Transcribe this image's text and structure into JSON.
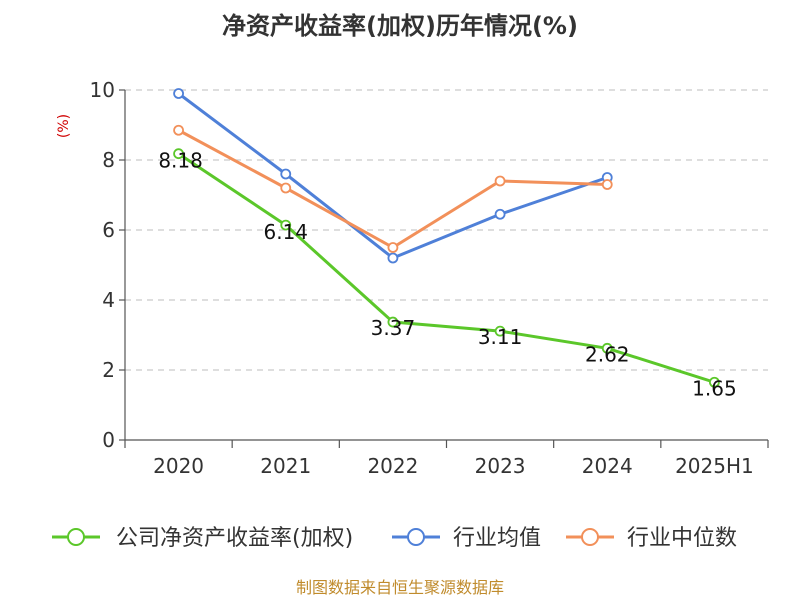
{
  "chart_data": {
    "type": "line",
    "title": "净资产收益率(加权)历年情况(%)",
    "ylabel": "(%)",
    "xlabel": "",
    "categories": [
      "2020",
      "2021",
      "2022",
      "2023",
      "2024",
      "2025H1"
    ],
    "ylim": [
      0,
      10
    ],
    "yticks": [
      "0",
      "2",
      "4",
      "6",
      "8",
      "10"
    ],
    "grid": true,
    "legend_position": "bottom",
    "series": [
      {
        "name": "公司净资产收益率(加权)",
        "color": "#5bc72a",
        "values": [
          8.18,
          6.14,
          3.37,
          3.11,
          2.62,
          1.65
        ],
        "labels": [
          "8.18",
          "6.14",
          "3.37",
          "3.11",
          "2.62",
          "1.65"
        ]
      },
      {
        "name": "行业均值",
        "color": "#4f80d8",
        "values": [
          9.9,
          7.6,
          5.2,
          6.45,
          7.5,
          null
        ]
      },
      {
        "name": "行业中位数",
        "color": "#f2905a",
        "values": [
          8.85,
          7.2,
          5.5,
          7.4,
          7.3,
          null
        ]
      }
    ]
  },
  "footer": "制图数据来自恒生聚源数据库"
}
